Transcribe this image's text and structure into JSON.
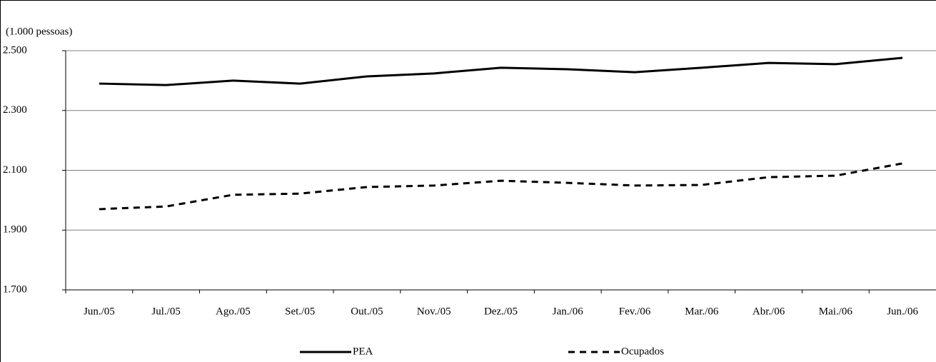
{
  "chart_data": {
    "type": "line",
    "y_unit_label": "(1.000 pessoas)",
    "categories": [
      "Jun./05",
      "Jul./05",
      "Ago./05",
      "Set./05",
      "Out./05",
      "Nov./05",
      "Dez./05",
      "Jan./06",
      "Fev./06",
      "Mar./06",
      "Abr./06",
      "Mai./06",
      "Jun./06"
    ],
    "series": [
      {
        "name": "PEA",
        "color": "#000000",
        "dash": "solid",
        "values": [
          2390,
          2385,
          2400,
          2390,
          2414,
          2424,
          2443,
          2438,
          2428,
          2443,
          2459,
          2455,
          2476
        ]
      },
      {
        "name": "Ocupados",
        "color": "#000000",
        "dash": "dashed",
        "values": [
          1970,
          1979,
          2018,
          2022,
          2044,
          2049,
          2065,
          2058,
          2049,
          2051,
          2077,
          2082,
          2123
        ]
      }
    ],
    "ylim": [
      1700,
      2500
    ],
    "yticks": [
      {
        "value": 1700,
        "label": "1.700"
      },
      {
        "value": 1900,
        "label": "1.900"
      },
      {
        "value": 2100,
        "label": "2.100"
      },
      {
        "value": 2300,
        "label": "2.300"
      },
      {
        "value": 2500,
        "label": "2.500"
      }
    ],
    "grid": true,
    "legend": "bottom"
  }
}
